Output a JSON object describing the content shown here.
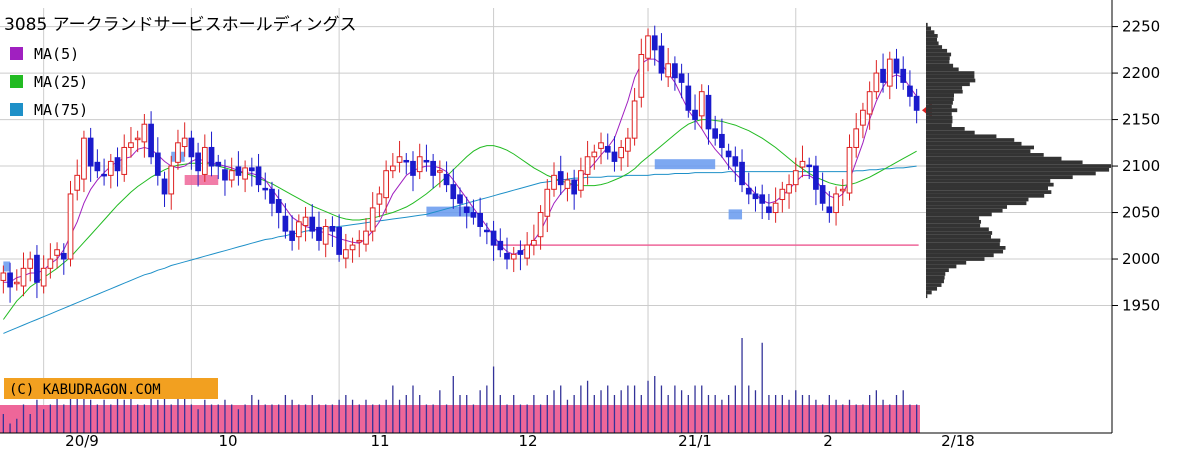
{
  "chart_data": {
    "type": "candlestick",
    "title": "3085 アークランドサービスホールディングス",
    "legend": [
      {
        "name": "MA(5)",
        "color": "#a020c0"
      },
      {
        "name": "MA(25)",
        "color": "#22bb22"
      },
      {
        "name": "MA(75)",
        "color": "#1e90c8"
      }
    ],
    "legend_placement": "top-left",
    "ylim": [
      1900,
      2270
    ],
    "y_ticks": [
      2250,
      2200,
      2150,
      2100,
      2050,
      2000,
      1950
    ],
    "y_tick_labels": [
      "2250",
      "2200",
      "2150",
      "2100",
      "2050",
      "2000",
      "1950"
    ],
    "x_tick_labels": [
      "20/9",
      "10",
      "11",
      "12",
      "21/1",
      "2",
      "2/18"
    ],
    "grid": true,
    "up_color": "#dd2222",
    "down_color": "#1a1acc",
    "close": [
      1985,
      1970,
      1975,
      1990,
      2000,
      1975,
      1990,
      2000,
      2010,
      2000,
      2070,
      2090,
      2130,
      2100,
      2095,
      2090,
      2105,
      2095,
      2120,
      2125,
      2130,
      2145,
      2110,
      2090,
      2070,
      2100,
      2125,
      2130,
      2110,
      2095,
      2120,
      2100,
      2100,
      2085,
      2095,
      2090,
      2098,
      2095,
      2080,
      2075,
      2060,
      2050,
      2030,
      2020,
      2040,
      2045,
      2030,
      2020,
      2035,
      2030,
      2005,
      2010,
      2015,
      2020,
      2030,
      2055,
      2070,
      2095,
      2100,
      2110,
      2105,
      2090,
      2110,
      2105,
      2090,
      2095,
      2080,
      2065,
      2060,
      2050,
      2045,
      2035,
      2030,
      2015,
      2010,
      2000,
      2005,
      2005,
      2015,
      2020,
      2050,
      2075,
      2090,
      2080,
      2085,
      2070,
      2095,
      2110,
      2115,
      2125,
      2115,
      2105,
      2120,
      2130,
      2170,
      2220,
      2240,
      2225,
      2200,
      2210,
      2195,
      2190,
      2160,
      2150,
      2180,
      2140,
      2130,
      2120,
      2110,
      2100,
      2080,
      2070,
      2065,
      2060,
      2050,
      2060,
      2075,
      2080,
      2095,
      2105,
      2100,
      2075,
      2060,
      2050,
      2070,
      2075,
      2120,
      2140,
      2160,
      2180,
      2200,
      2190,
      2215,
      2200,
      2190,
      2175,
      2160
    ],
    "ma5": [
      1975,
      1975,
      1980,
      1982,
      1985,
      1985,
      1988,
      1995,
      2000,
      2010,
      2025,
      2040,
      2060,
      2075,
      2085,
      2093,
      2100,
      2105,
      2108,
      2110,
      2118,
      2120,
      2118,
      2112,
      2105,
      2100,
      2098,
      2100,
      2105,
      2108,
      2105,
      2103,
      2102,
      2100,
      2098,
      2095,
      2093,
      2092,
      2090,
      2085,
      2075,
      2065,
      2055,
      2045,
      2040,
      2035,
      2033,
      2030,
      2028,
      2025,
      2022,
      2020,
      2018,
      2017,
      2022,
      2030,
      2040,
      2055,
      2070,
      2080,
      2090,
      2095,
      2098,
      2100,
      2100,
      2098,
      2094,
      2085,
      2075,
      2065,
      2055,
      2045,
      2035,
      2025,
      2015,
      2008,
      2005,
      2008,
      2012,
      2020,
      2030,
      2045,
      2060,
      2070,
      2078,
      2082,
      2088,
      2095,
      2103,
      2112,
      2120,
      2130,
      2150,
      2170,
      2195,
      2210,
      2215,
      2215,
      2210,
      2200,
      2190,
      2175,
      2160,
      2150,
      2140,
      2128,
      2118,
      2110,
      2100,
      2092,
      2085,
      2078,
      2070,
      2063,
      2060,
      2062,
      2068,
      2075,
      2083,
      2090,
      2090,
      2085,
      2075,
      2068,
      2065,
      2070,
      2085,
      2105,
      2125,
      2150,
      2170,
      2185,
      2195,
      2198,
      2195,
      2185,
      2175
    ],
    "ma25": [
      1935,
      1945,
      1955,
      1962,
      1970,
      1975,
      1980,
      1985,
      1990,
      1996,
      2002,
      2010,
      2018,
      2026,
      2034,
      2042,
      2050,
      2058,
      2065,
      2072,
      2078,
      2083,
      2088,
      2092,
      2096,
      2099,
      2101,
      2102,
      2103,
      2103,
      2103,
      2102,
      2100,
      2098,
      2096,
      2094,
      2092,
      2090,
      2087,
      2084,
      2081,
      2077,
      2073,
      2069,
      2065,
      2061,
      2057,
      2054,
      2051,
      2048,
      2045,
      2043,
      2042,
      2042,
      2043,
      2044,
      2046,
      2048,
      2050,
      2053,
      2056,
      2060,
      2065,
      2070,
      2076,
      2082,
      2089,
      2096,
      2103,
      2110,
      2116,
      2120,
      2122,
      2122,
      2120,
      2117,
      2113,
      2108,
      2103,
      2098,
      2094,
      2090,
      2087,
      2084,
      2082,
      2080,
      2079,
      2079,
      2079,
      2080,
      2082,
      2085,
      2088,
      2092,
      2097,
      2104,
      2110,
      2116,
      2122,
      2128,
      2134,
      2140,
      2145,
      2148,
      2150,
      2150,
      2149,
      2148,
      2146,
      2144,
      2141,
      2138,
      2134,
      2130,
      2125,
      2120,
      2114,
      2108,
      2102,
      2097,
      2092,
      2088,
      2085,
      2082,
      2080,
      2079,
      2080,
      2082,
      2085,
      2088,
      2092,
      2096,
      2100,
      2104,
      2108,
      2112,
      2116
    ],
    "ma75": [
      1920,
      1923,
      1926,
      1929,
      1932,
      1935,
      1938,
      1941,
      1944,
      1947,
      1950,
      1953,
      1956,
      1959,
      1962,
      1965,
      1968,
      1971,
      1974,
      1977,
      1980,
      1983,
      1985,
      1988,
      1990,
      1993,
      1995,
      1997,
      1999,
      2001,
      2003,
      2005,
      2007,
      2009,
      2011,
      2013,
      2015,
      2017,
      2019,
      2021,
      2022,
      2024,
      2025,
      2027,
      2028,
      2030,
      2031,
      2032,
      2033,
      2034,
      2035,
      2036,
      2037,
      2038,
      2039,
      2040,
      2041,
      2042,
      2043,
      2044,
      2045,
      2046,
      2047,
      2048,
      2050,
      2052,
      2054,
      2056,
      2058,
      2060,
      2062,
      2064,
      2066,
      2068,
      2070,
      2072,
      2074,
      2076,
      2078,
      2080,
      2082,
      2083,
      2084,
      2085,
      2086,
      2087,
      2087,
      2088,
      2088,
      2088,
      2089,
      2089,
      2089,
      2090,
      2090,
      2090,
      2090,
      2091,
      2091,
      2091,
      2092,
      2092,
      2092,
      2093,
      2093,
      2093,
      2093,
      2093,
      2094,
      2094,
      2094,
      2094,
      2094,
      2094,
      2094,
      2094,
      2094,
      2094,
      2094,
      2094,
      2094,
      2094,
      2094,
      2094,
      2094,
      2094,
      2094,
      2095,
      2095,
      2096,
      2096,
      2097,
      2097,
      2098,
      2098,
      2099,
      2100
    ],
    "volume_relative": [
      0.2,
      0.1,
      0.15,
      0.3,
      0.2,
      0.35,
      0.25,
      0.3,
      0.4,
      0.3,
      0.45,
      0.5,
      0.4,
      0.35,
      0.3,
      0.35,
      0.3,
      0.4,
      0.35,
      0.45,
      0.3,
      0.3,
      0.5,
      0.35,
      0.4,
      0.3,
      0.55,
      0.4,
      0.3,
      0.25,
      0.35,
      0.3,
      0.3,
      0.35,
      0.3,
      0.25,
      0.3,
      0.4,
      0.35,
      0.3,
      0.3,
      0.3,
      0.4,
      0.35,
      0.3,
      0.3,
      0.4,
      0.3,
      0.3,
      0.3,
      0.35,
      0.4,
      0.35,
      0.3,
      0.35,
      0.3,
      0.3,
      0.35,
      0.5,
      0.35,
      0.4,
      0.5,
      0.4,
      0.3,
      0.3,
      0.45,
      0.3,
      0.6,
      0.4,
      0.4,
      0.3,
      0.45,
      0.5,
      0.7,
      0.4,
      0.3,
      0.4,
      0.3,
      0.3,
      0.4,
      0.3,
      0.4,
      0.45,
      0.5,
      0.35,
      0.4,
      0.5,
      0.55,
      0.4,
      0.45,
      0.5,
      0.4,
      0.45,
      0.5,
      0.5,
      0.4,
      0.55,
      0.6,
      0.5,
      0.4,
      0.5,
      0.45,
      0.4,
      0.5,
      0.5,
      0.4,
      0.4,
      0.35,
      0.4,
      0.5,
      1.0,
      0.5,
      0.45,
      0.95,
      0.4,
      0.4,
      0.4,
      0.35,
      0.45,
      0.4,
      0.4,
      0.35,
      0.3,
      0.4,
      0.35,
      0.3,
      0.35,
      0.3,
      0.3,
      0.4,
      0.45,
      0.35,
      0.3,
      0.4,
      0.45,
      0.3,
      0.3
    ],
    "volume_color": "#333399",
    "volume_band_color": "#ee6699",
    "volume_profile_color": "#333333",
    "current_marker_color": "#dd2222",
    "reference_line_value": 2015,
    "reference_line_color": "#ee6699",
    "copyright_text": "(C) KABUDRAGON.COM",
    "copyright_bg": "#f2a020"
  }
}
